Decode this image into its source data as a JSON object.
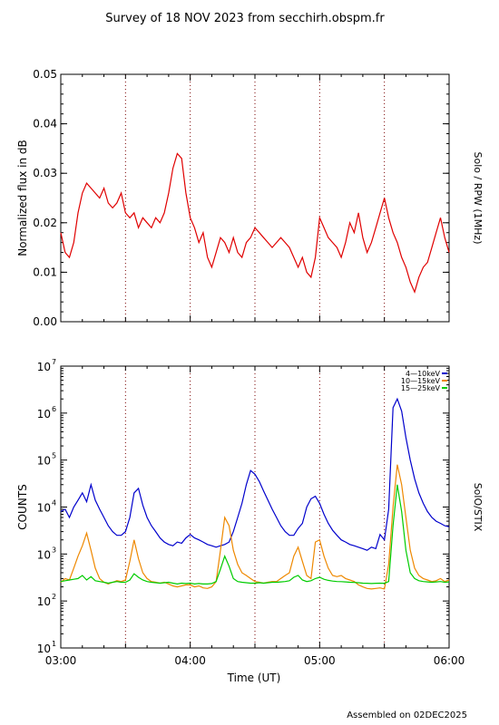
{
  "title": "Survey of 18 NOV 2023 from secchirh.obspm.fr",
  "footer": "Assembled on 02DEC2025",
  "x_axis": {
    "label": "Time (UT)",
    "ticks": [
      "03:00",
      "04:00",
      "05:00",
      "06:00"
    ],
    "range_minutes": [
      0,
      180
    ],
    "dotted_marker_minutes": [
      30,
      60,
      90,
      120,
      150
    ]
  },
  "chart_data": [
    {
      "type": "line",
      "ylabel": "Normalized flux in dB",
      "right_label": "Solo / RPW (1MHz)",
      "ylim": [
        0,
        0.05
      ],
      "yticks": [
        "0.00",
        "0.01",
        "0.02",
        "0.03",
        "0.04",
        "0.05"
      ],
      "color": "#e00000",
      "series": [
        {
          "x": [
            0,
            2,
            4,
            6,
            8,
            10,
            12,
            14,
            16,
            18,
            20,
            22,
            24,
            26,
            28,
            30,
            32,
            34,
            36,
            38,
            40,
            42,
            44,
            46,
            48,
            50,
            52,
            54,
            56,
            58,
            60,
            62,
            64,
            66,
            68,
            70,
            72,
            74,
            76,
            78,
            80,
            82,
            84,
            86,
            88,
            90,
            92,
            94,
            96,
            98,
            100,
            102,
            104,
            106,
            108,
            110,
            112,
            114,
            116,
            118,
            120,
            122,
            124,
            126,
            128,
            130,
            132,
            134,
            136,
            138,
            140,
            142,
            144,
            146,
            148,
            150,
            152,
            154,
            156,
            158,
            160,
            162,
            164,
            166,
            168,
            170,
            172,
            174,
            176,
            178,
            180
          ],
          "y": [
            0.018,
            0.014,
            0.013,
            0.016,
            0.022,
            0.026,
            0.028,
            0.027,
            0.026,
            0.025,
            0.027,
            0.024,
            0.023,
            0.024,
            0.026,
            0.022,
            0.021,
            0.022,
            0.019,
            0.021,
            0.02,
            0.019,
            0.021,
            0.02,
            0.022,
            0.026,
            0.031,
            0.034,
            0.033,
            0.026,
            0.021,
            0.019,
            0.016,
            0.018,
            0.013,
            0.011,
            0.014,
            0.017,
            0.016,
            0.014,
            0.017,
            0.014,
            0.013,
            0.016,
            0.017,
            0.019,
            0.018,
            0.017,
            0.016,
            0.015,
            0.016,
            0.017,
            0.016,
            0.015,
            0.013,
            0.011,
            0.013,
            0.01,
            0.009,
            0.013,
            0.021,
            0.019,
            0.017,
            0.016,
            0.015,
            0.013,
            0.016,
            0.02,
            0.018,
            0.022,
            0.017,
            0.014,
            0.016,
            0.019,
            0.022,
            0.025,
            0.021,
            0.018,
            0.016,
            0.013,
            0.011,
            0.008,
            0.006,
            0.009,
            0.011,
            0.012,
            0.015,
            0.018,
            0.021,
            0.017,
            0.014
          ]
        }
      ]
    },
    {
      "type": "line",
      "ylabel": "COUNTS",
      "right_label": "SolO/STIX",
      "yscale": "log",
      "ylim": [
        10,
        10000000
      ],
      "ytick_labels": [
        {
          "base": "10",
          "exp": "1"
        },
        {
          "base": "10",
          "exp": "2"
        },
        {
          "base": "10",
          "exp": "3"
        },
        {
          "base": "10",
          "exp": "4"
        },
        {
          "base": "10",
          "exp": "5"
        },
        {
          "base": "10",
          "exp": "6"
        },
        {
          "base": "10",
          "exp": "7"
        }
      ],
      "legend_position": "top-right",
      "x": [
        0,
        2,
        4,
        6,
        8,
        10,
        12,
        14,
        16,
        18,
        20,
        22,
        24,
        26,
        28,
        30,
        32,
        34,
        36,
        38,
        40,
        42,
        44,
        46,
        48,
        50,
        52,
        54,
        56,
        58,
        60,
        62,
        64,
        66,
        68,
        70,
        72,
        74,
        76,
        78,
        80,
        82,
        84,
        86,
        88,
        90,
        92,
        94,
        96,
        98,
        100,
        102,
        104,
        106,
        108,
        110,
        112,
        114,
        116,
        118,
        120,
        122,
        124,
        126,
        128,
        130,
        132,
        134,
        136,
        138,
        140,
        142,
        144,
        146,
        148,
        150,
        152,
        154,
        156,
        158,
        160,
        162,
        164,
        166,
        168,
        170,
        172,
        174,
        176,
        178,
        180
      ],
      "series": [
        {
          "name": "4—10keV",
          "color": "#0000cc",
          "values": [
            8000,
            9000,
            6000,
            10000,
            14000,
            20000,
            13000,
            30000,
            14000,
            9000,
            6000,
            4000,
            3000,
            2500,
            2500,
            3000,
            6000,
            20000,
            25000,
            11000,
            6000,
            4000,
            3000,
            2200,
            1800,
            1600,
            1500,
            1800,
            1700,
            2200,
            2600,
            2200,
            2000,
            1800,
            1600,
            1500,
            1400,
            1500,
            1600,
            1800,
            3000,
            6000,
            12000,
            30000,
            60000,
            50000,
            35000,
            22000,
            14000,
            9000,
            6000,
            4000,
            3000,
            2500,
            2500,
            3500,
            4500,
            10000,
            15000,
            17000,
            12000,
            7000,
            4500,
            3200,
            2500,
            2000,
            1800,
            1600,
            1500,
            1400,
            1300,
            1200,
            1400,
            1300,
            2600,
            2000,
            9000,
            1300000,
            2000000,
            1100000,
            300000,
            100000,
            40000,
            20000,
            12000,
            8000,
            6000,
            5000,
            4500,
            4000,
            3800
          ]
        },
        {
          "name": "10—15keV",
          "color": "#ee8800",
          "values": [
            250,
            300,
            280,
            500,
            900,
            1500,
            2800,
            1200,
            500,
            300,
            250,
            230,
            250,
            270,
            260,
            280,
            700,
            2000,
            800,
            400,
            300,
            260,
            250,
            240,
            250,
            230,
            210,
            200,
            210,
            220,
            220,
            200,
            210,
            190,
            185,
            200,
            260,
            1200,
            6000,
            4000,
            1200,
            600,
            400,
            350,
            300,
            260,
            250,
            240,
            250,
            260,
            260,
            300,
            350,
            400,
            900,
            1400,
            700,
            350,
            300,
            1800,
            2000,
            900,
            500,
            350,
            330,
            350,
            300,
            280,
            260,
            220,
            200,
            185,
            180,
            185,
            190,
            180,
            600,
            10000,
            80000,
            30000,
            6000,
            1200,
            500,
            350,
            300,
            280,
            260,
            270,
            300,
            260,
            280
          ]
        },
        {
          "name": "15—25keV",
          "color": "#00cc00",
          "values": [
            260,
            270,
            280,
            290,
            300,
            350,
            280,
            330,
            270,
            260,
            250,
            240,
            250,
            260,
            250,
            250,
            280,
            380,
            320,
            280,
            260,
            250,
            245,
            240,
            245,
            250,
            240,
            230,
            240,
            235,
            240,
            230,
            235,
            230,
            230,
            235,
            260,
            480,
            900,
            550,
            300,
            260,
            250,
            245,
            240,
            240,
            245,
            240,
            245,
            250,
            250,
            255,
            260,
            270,
            320,
            350,
            280,
            260,
            270,
            300,
            320,
            290,
            275,
            265,
            260,
            258,
            255,
            250,
            248,
            245,
            240,
            238,
            235,
            238,
            240,
            238,
            260,
            4000,
            30000,
            8000,
            1200,
            400,
            300,
            270,
            260,
            255,
            250,
            255,
            260,
            250,
            255
          ]
        }
      ]
    }
  ]
}
